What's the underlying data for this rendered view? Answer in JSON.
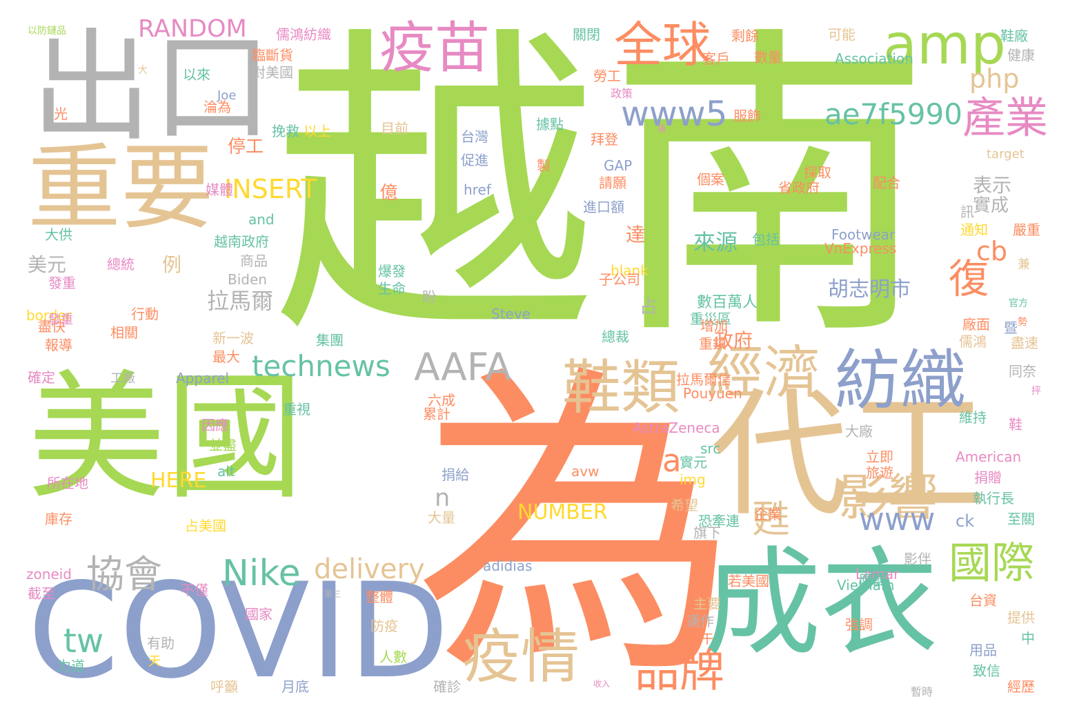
{
  "colors": {
    "green": "#a6d854",
    "orange": "#fc8d62",
    "blue": "#8da0cb",
    "teal": "#66c2a5",
    "tan": "#e5c494",
    "gray": "#b3b3b3",
    "pink": "#e78ac3",
    "yellow": "#ffd92f"
  },
  "words": [
    "越",
    "南",
    "為",
    "美國",
    "代工",
    "成衣",
    "出口",
    "COVID",
    "重要",
    "疫苗",
    "amp",
    "全球",
    "紡織",
    "鞋類",
    "經濟",
    "疫情",
    "影響",
    "國際",
    "品牌",
    "產業",
    "www5",
    "ae7f5990",
    "AAFA",
    "technews",
    "Nike",
    "協會",
    "delivery",
    "INSERT",
    "RANDOM",
    "tw",
    "復",
    "php",
    "cb",
    "NUMBER",
    "HERE",
    "www",
    "a",
    "甦",
    "n",
    "來源",
    "胡志明市",
    "拉馬爾",
    "停工",
    "億",
    "美元",
    "例",
    "政府",
    "表示",
    "達",
    "實成",
    "數百萬人",
    "重災區",
    "Biden",
    "Steve",
    "Joe",
    "Apparel",
    "Footwear",
    "VnExpress",
    "Association",
    "Vietnam",
    "Lamar",
    "AstraZeneca",
    "Pouyuen",
    "adidias",
    "American",
    "avw",
    "alt",
    "img",
    "src",
    "href",
    "target",
    "blank",
    "zoneid",
    "border",
    "GAP",
    "and",
    "ck",
    "儒鴻紡織",
    "臨斷貨",
    "以來",
    "光",
    "淪為",
    "挽救",
    "以上",
    "目前",
    "對美國",
    "據點",
    "拜登",
    "台灣",
    "促進",
    "請願",
    "進口額",
    "包括",
    "總統",
    "行動",
    "相關",
    "報導",
    "盡快",
    "確定",
    "工廠",
    "新一波",
    "最大",
    "集團",
    "總裁",
    "大供",
    "媒體",
    "越南政府",
    "商品",
    "爆發",
    "生命",
    "盼",
    "子公司",
    "六成",
    "累計",
    "拉馬爾信",
    "因應",
    "並盡",
    "所在地",
    "庫存",
    "截至",
    "不僅",
    "國家",
    "有助",
    "力道",
    "呼籲",
    "月底",
    "防疫",
    "人數",
    "確診",
    "主要",
    "運作",
    "上午",
    "提供",
    "用品",
    "致信",
    "經歷",
    "暫時",
    "台資",
    "執行長",
    "捐贈",
    "至關",
    "企業",
    "若美國",
    "恐牽連",
    "希望",
    "實元",
    "月",
    "捐給",
    "大量",
    "占美國",
    "占",
    "重視",
    "旗下",
    "影伴",
    "應國",
    "立即",
    "旅遊",
    "大廠",
    "維持",
    "同奈",
    "儒鴻",
    "廠面",
    "增加",
    "重鎮",
    "盡速",
    "嚴重",
    "通知",
    "配合",
    "採取",
    "個案",
    "省政府",
    "製",
    "服飾",
    "政策",
    "勞工",
    "客戶",
    "數量",
    "剩餘",
    "關閉",
    "可能",
    "鞋廠",
    "健康",
    "訊",
    "發重",
    "以防鏈品",
    "大",
    "鞋",
    "官方",
    "兼",
    "暨",
    "中",
    "強調",
    "收入",
    "天",
    "第三",
    "整體",
    "抨",
    "強",
    "勢",
    "發重"
  ]
}
